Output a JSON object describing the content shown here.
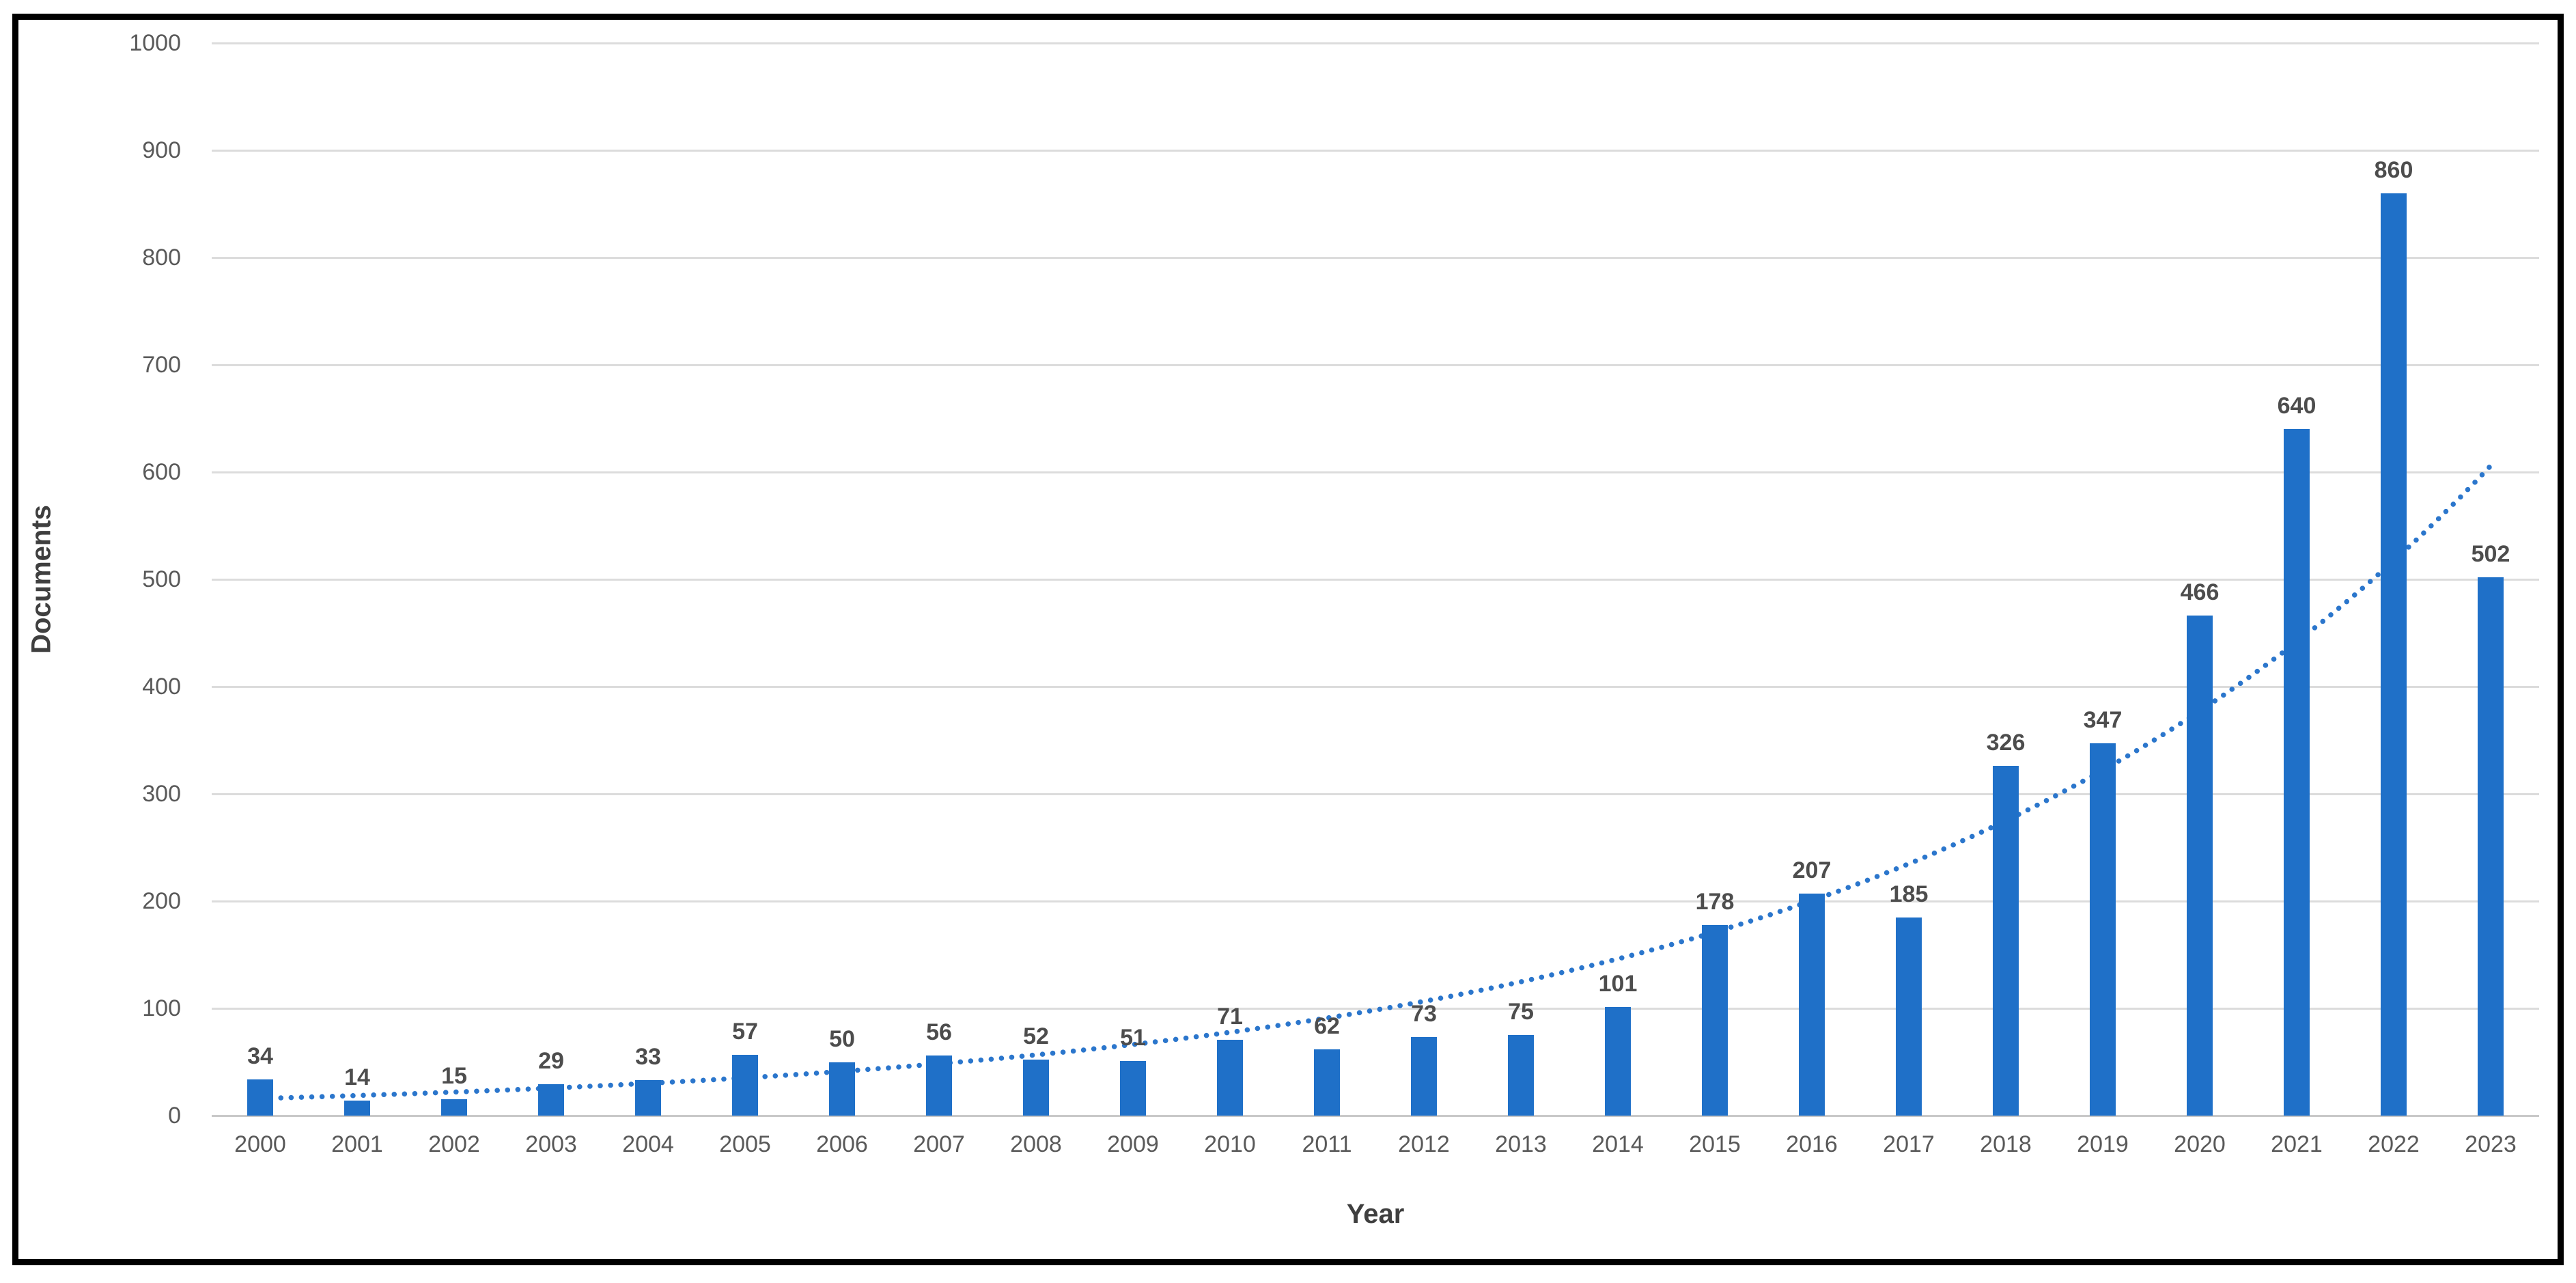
{
  "chart_data": {
    "type": "bar",
    "title": "",
    "xlabel": "Year",
    "ylabel": "Documents",
    "categories": [
      "2000",
      "2001",
      "2002",
      "2003",
      "2004",
      "2005",
      "2006",
      "2007",
      "2008",
      "2009",
      "2010",
      "2011",
      "2012",
      "2013",
      "2014",
      "2015",
      "2016",
      "2017",
      "2018",
      "2019",
      "2020",
      "2021",
      "2022",
      "2023"
    ],
    "values": [
      34,
      14,
      15,
      29,
      33,
      57,
      50,
      56,
      52,
      51,
      71,
      62,
      73,
      75,
      101,
      178,
      207,
      185,
      326,
      347,
      466,
      640,
      860,
      502
    ],
    "data_labels": [
      34,
      14,
      15,
      29,
      33,
      57,
      50,
      56,
      52,
      51,
      71,
      62,
      73,
      75,
      101,
      178,
      207,
      185,
      326,
      347,
      466,
      640,
      860,
      502
    ],
    "ylim": [
      0,
      1000
    ],
    "yticks": [
      0,
      100,
      200,
      300,
      400,
      500,
      600,
      700,
      800,
      900,
      1000
    ],
    "grid": "horizontal",
    "legend": "none",
    "bar_color": "#1f70c8",
    "trendline": {
      "style": "dotted",
      "color": "#2b76cc",
      "model": "exponential",
      "a": 16.0,
      "b": 0.158,
      "x_start": 0.0,
      "x_end": 23.0
    }
  },
  "colors": {
    "value_label": "#4d4d4d",
    "axis_text": "#595959",
    "gridline": "#dcdcdc",
    "axis_line": "#c9c9c9",
    "frame_border": "#000000"
  }
}
